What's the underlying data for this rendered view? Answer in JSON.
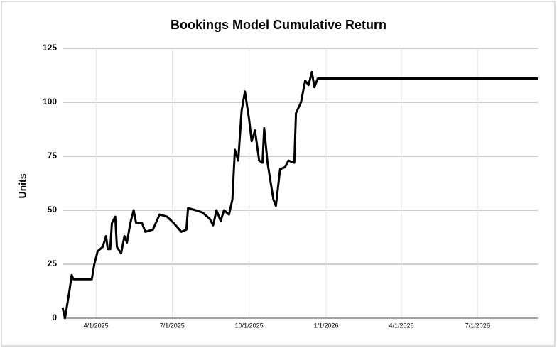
{
  "chart_data": {
    "type": "line",
    "title": "Bookings Model Cumulative Return",
    "y_label": "Units",
    "x": [
      "2/20/2025",
      "2/23/2025",
      "2/28/2025",
      "3/3/2025",
      "3/5/2025",
      "3/27/2025",
      "3/30/2025",
      "4/3/2025",
      "4/9/2025",
      "4/13/2025",
      "4/15/2025",
      "4/18/2025",
      "4/20/2025",
      "4/24/2025",
      "4/26/2025",
      "5/1/2025",
      "5/5/2025",
      "5/8/2025",
      "5/12/2025",
      "5/16/2025",
      "5/19/2025",
      "5/26/2025",
      "5/30/2025",
      "6/8/2025",
      "6/16/2025",
      "6/25/2025",
      "7/3/2025",
      "7/12/2025",
      "7/18/2025",
      "7/20/2025",
      "7/29/2025",
      "8/6/2025",
      "8/15/2025",
      "8/19/2025",
      "8/23/2025",
      "8/28/2025",
      "9/1/2025",
      "9/7/2025",
      "9/11/2025",
      "9/14/2025",
      "9/18/2025",
      "9/22/2025",
      "9/26/2025",
      "10/1/2025",
      "10/4/2025",
      "10/8/2025",
      "10/13/2025",
      "10/17/2025",
      "10/19/2025",
      "10/23/2025",
      "10/30/2025",
      "11/2/2025",
      "11/7/2025",
      "11/13/2025",
      "11/17/2025",
      "11/24/2025",
      "11/26/2025",
      "12/2/2025",
      "12/7/2025",
      "12/11/2025",
      "12/15/2025",
      "12/18/2025",
      "12/22/2025",
      "9/11/2026"
    ],
    "series": [
      {
        "name": "Cumulative Return",
        "color": "#000000",
        "values": [
          5,
          0,
          12,
          20,
          18,
          18,
          25,
          31,
          33,
          38,
          32,
          32,
          44,
          47,
          33,
          30,
          38,
          35,
          44,
          50,
          44,
          44,
          40,
          41,
          48,
          47,
          44,
          40,
          41,
          51,
          50,
          49,
          46,
          43,
          50,
          45,
          50,
          48,
          55,
          78,
          73,
          96,
          105,
          92,
          82,
          87,
          73,
          72,
          88,
          72,
          55,
          52,
          69,
          70,
          73,
          72,
          95,
          100,
          110,
          108,
          114,
          107,
          111,
          111
        ]
      }
    ],
    "xlim": [
      "2/20/2025",
      "9/11/2026"
    ],
    "xticks": [
      "4/1/2025",
      "7/1/2025",
      "10/1/2025",
      "1/1/2026",
      "4/1/2026",
      "7/1/2026"
    ],
    "ylim": [
      0,
      125
    ],
    "yticks": [
      0,
      25,
      50,
      75,
      100,
      125
    ],
    "grid": true
  }
}
